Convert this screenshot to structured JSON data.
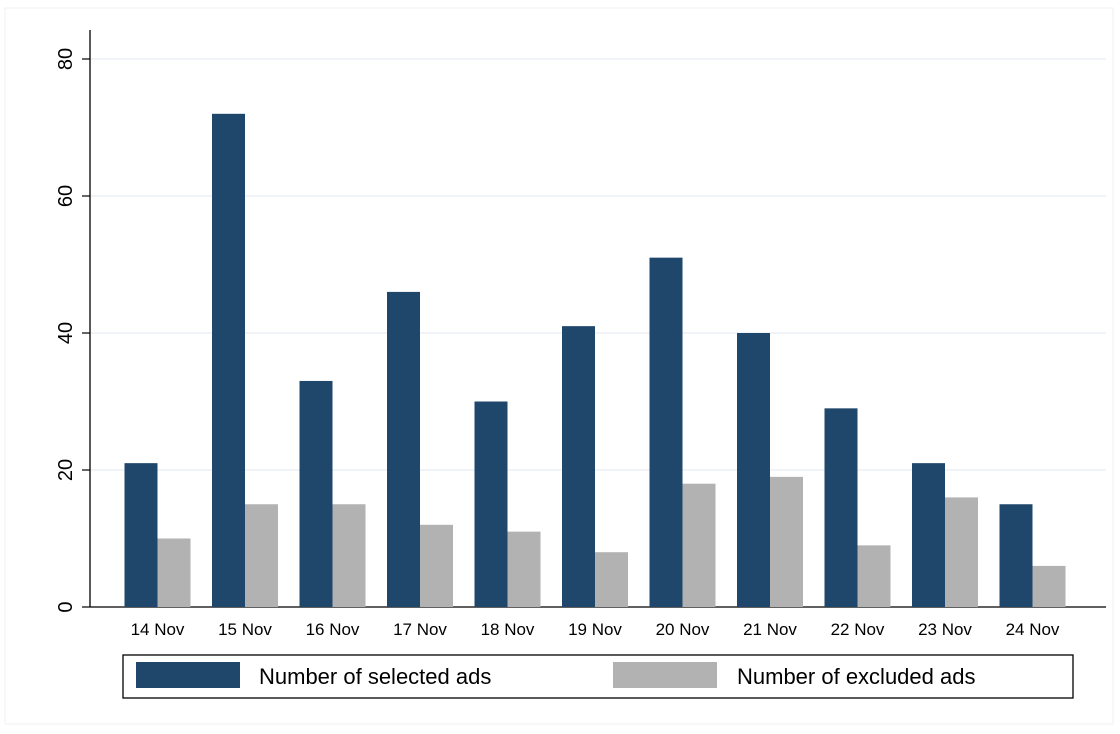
{
  "chart_data": {
    "type": "bar",
    "title": "",
    "xlabel": "",
    "ylabel": "",
    "ylim": [
      0,
      80
    ],
    "yticks": [
      "0",
      "20",
      "40",
      "60",
      "80"
    ],
    "grid": true,
    "legend_position": "bottom",
    "categories": [
      "14 Nov",
      "15 Nov",
      "16 Nov",
      "17 Nov",
      "18 Nov",
      "19 Nov",
      "20 Nov",
      "21 Nov",
      "22 Nov",
      "23 Nov",
      "24 Nov"
    ],
    "series": [
      {
        "name": "Number of selected ads",
        "color": "#1f476b",
        "values": [
          21,
          72,
          33,
          46,
          30,
          41,
          51,
          40,
          29,
          21,
          15
        ]
      },
      {
        "name": "Number of excluded ads",
        "color": "#b2b2b2",
        "values": [
          10,
          15,
          15,
          12,
          11,
          8,
          18,
          19,
          9,
          16,
          6
        ]
      }
    ],
    "colors": {
      "gridline": "#e6eef3",
      "axis": "#000000",
      "background": "#ffffff"
    }
  }
}
